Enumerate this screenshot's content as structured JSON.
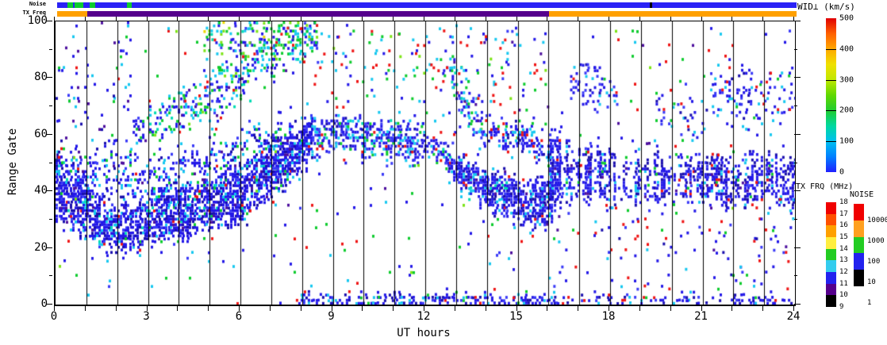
{
  "top_strips": {
    "noise_label": "Noise",
    "txfreq_label": "TX Freq",
    "noise_segments": [
      {
        "from": 0.1,
        "to": 24.1,
        "color": "#2a22f5"
      },
      {
        "from": 0.44,
        "to": 0.62,
        "color": "#0ecc2e"
      },
      {
        "from": 0.67,
        "to": 0.95,
        "color": "#0ecc2e"
      },
      {
        "from": 1.16,
        "to": 1.34,
        "color": "#0ecc2e"
      },
      {
        "from": 2.37,
        "to": 2.52,
        "color": "#0ecc2e"
      },
      {
        "from": 19.33,
        "to": 19.42,
        "color": "#000000"
      }
    ],
    "txfreq_segments": [
      {
        "from": 0.1,
        "to": 1.08,
        "color": "#ffa000"
      },
      {
        "from": 1.08,
        "to": 16.07,
        "color": "#55008c"
      },
      {
        "from": 16.07,
        "to": 24.1,
        "color": "#ffa000"
      }
    ]
  },
  "axes": {
    "x_label": "UT hours",
    "y_label": "Range Gate",
    "x_range": [
      0,
      24
    ],
    "x_tick_labels": [
      0,
      3,
      6,
      9,
      12,
      15,
      18,
      21,
      24
    ],
    "x_minor_tick_every_hours": 1,
    "y_range": [
      0,
      100
    ],
    "y_tick_labels": [
      0,
      20,
      40,
      60,
      80,
      100
    ],
    "y_minor_tick_every_gates": 10,
    "vertical_gridline_every_hours": 1
  },
  "colorbars": {
    "wid": {
      "title": "WID⊥ (km/s)",
      "min": 0,
      "max": 500,
      "tick_labels": [
        500,
        400,
        300,
        200,
        100,
        0
      ],
      "gradient_bottom_to_top": [
        "#2020ff",
        "#0080ff",
        "#00c0f0",
        "#00d8a0",
        "#20cc30",
        "#60d800",
        "#c0e800",
        "#f0e000",
        "#ffa800",
        "#ff6000",
        "#e00000"
      ]
    },
    "txfrq": {
      "title": "TX FRQ (MHz)",
      "tick_labels": [
        18,
        17,
        16,
        15,
        14,
        13,
        12,
        11,
        10,
        9
      ],
      "segments_top_to_bottom": [
        "#f00000",
        "#ff5000",
        "#ffa000",
        "#ffee40",
        "#22cc22",
        "#33ccee",
        "#2222ee",
        "#55008c",
        "#000000"
      ]
    },
    "noise": {
      "title": "NOISE",
      "tick_labels": [
        "10000",
        "1000",
        "100",
        "10",
        "1"
      ],
      "segments_top_to_bottom": [
        "#f00000",
        "#ffa020",
        "#22cc22",
        "#2222ee",
        "#000000"
      ]
    }
  },
  "chart_data": {
    "type": "heatmap",
    "title": "",
    "xlabel": "UT hours",
    "ylabel": "Range Gate",
    "xlim": [
      0,
      24
    ],
    "ylim": [
      0,
      100
    ],
    "value_label": "WID⊥ (km/s)",
    "value_range": [
      0,
      500
    ],
    "grid": "vertical lines every 1 hour",
    "palette": {
      "blue": "#2318e8",
      "blue2": "#3a3af8",
      "navy": "#1a0fae",
      "indigo": "#4d0f9e",
      "cyan": "#16c8f0",
      "teal": "#00dcb4",
      "green": "#0ecc2e",
      "lime": "#7ce414",
      "yellow": "#ecd800",
      "orange": "#ff9000",
      "red": "#ef1414",
      "black": "#101010"
    },
    "features": [
      {
        "name": "morning-band",
        "t0": 0,
        "t1": 8.3,
        "density": 0.8,
        "path": [
          [
            0,
            41,
            11
          ],
          [
            0.9,
            35,
            10
          ],
          [
            1.7,
            26,
            7
          ],
          [
            2.6,
            28,
            8
          ],
          [
            3.6,
            31,
            8
          ],
          [
            4.6,
            33,
            8
          ],
          [
            5.6,
            37,
            9
          ],
          [
            6.6,
            44,
            9
          ],
          [
            7.6,
            52,
            8
          ],
          [
            8.3,
            58,
            7
          ]
        ],
        "colors": {
          "blue": 0.58,
          "navy": 0.16,
          "blue2": 0.1,
          "cyan": 0.07,
          "indigo": 0.04,
          "teal": 0.02,
          "green": 0.015,
          "red": 0.015
        }
      },
      {
        "name": "morning-band-fringe",
        "t0": 0,
        "t1": 8.3,
        "density": 0.3,
        "path": [
          [
            0,
            52,
            5
          ],
          [
            1.5,
            46,
            7
          ],
          [
            3,
            44,
            8
          ],
          [
            4.5,
            46,
            8
          ],
          [
            6,
            52,
            8
          ],
          [
            7.5,
            59,
            7
          ],
          [
            8.3,
            64,
            5
          ]
        ],
        "colors": {
          "blue": 0.45,
          "cyan": 0.2,
          "blue2": 0.15,
          "navy": 0.08,
          "green": 0.06,
          "indigo": 0.03,
          "red": 0.03
        }
      },
      {
        "name": "midday-band",
        "t0": 8.3,
        "t1": 12.75,
        "density": 0.55,
        "path": [
          [
            8.3,
            59,
            7
          ],
          [
            9,
            61,
            6
          ],
          [
            10,
            59,
            6
          ],
          [
            11,
            57,
            6
          ],
          [
            12,
            56,
            5
          ],
          [
            12.75,
            53,
            5
          ]
        ],
        "colors": {
          "blue": 0.5,
          "cyan": 0.15,
          "blue2": 0.12,
          "navy": 0.08,
          "green": 0.08,
          "teal": 0.04,
          "red": 0.03
        }
      },
      {
        "name": "afternoon-descent",
        "t0": 12.75,
        "t1": 16.1,
        "density": 0.8,
        "path": [
          [
            12.75,
            49,
            4
          ],
          [
            13.3,
            45,
            6
          ],
          [
            14.1,
            40,
            7
          ],
          [
            15.1,
            36,
            7
          ],
          [
            16.1,
            36,
            8
          ]
        ],
        "colors": {
          "blue": 0.55,
          "navy": 0.17,
          "blue2": 0.1,
          "cyan": 0.1,
          "indigo": 0.03,
          "teal": 0.02,
          "red": 0.03
        }
      },
      {
        "name": "evening-start-block",
        "t0": 16.02,
        "t1": 16.4,
        "density": 0.85,
        "path": [
          [
            16.02,
            47,
            14
          ],
          [
            16.4,
            47,
            13
          ]
        ],
        "colors": {
          "blue": 0.6,
          "navy": 0.18,
          "blue2": 0.1,
          "cyan": 0.06,
          "indigo": 0.03,
          "red": 0.03
        }
      },
      {
        "name": "evening-band",
        "t0": 16.4,
        "t1": 24,
        "density": 0.62,
        "streaky": true,
        "path": [
          [
            16.4,
            47,
            9
          ],
          [
            18,
            45,
            8
          ],
          [
            20,
            44,
            8
          ],
          [
            22,
            44,
            8
          ],
          [
            24,
            43,
            8
          ]
        ],
        "colors": {
          "blue": 0.55,
          "navy": 0.2,
          "blue2": 0.1,
          "cyan": 0.06,
          "red": 0.04,
          "indigo": 0.03,
          "green": 0.02
        }
      },
      {
        "name": "dawn-diagonal",
        "t0": 2.5,
        "t1": 8.5,
        "density": 0.3,
        "path": [
          [
            2.5,
            62,
            5
          ],
          [
            4,
            68,
            7
          ],
          [
            5,
            74,
            8
          ],
          [
            6,
            82,
            9
          ],
          [
            7,
            90,
            9
          ],
          [
            8.5,
            96,
            5
          ]
        ],
        "colors": {
          "blue": 0.3,
          "cyan": 0.22,
          "green": 0.2,
          "blue2": 0.1,
          "teal": 0.08,
          "lime": 0.04,
          "red": 0.03,
          "indigo": 0.03
        }
      },
      {
        "name": "dawn-top-patch",
        "t0": 4.8,
        "t1": 8.5,
        "density": 0.3,
        "path": [
          [
            4.8,
            94,
            6
          ],
          [
            6.5,
            95,
            6
          ],
          [
            8.5,
            96,
            4
          ]
        ],
        "colors": {
          "green": 0.3,
          "cyan": 0.25,
          "blue": 0.2,
          "lime": 0.1,
          "teal": 0.05,
          "red": 0.04,
          "yellow": 0.03,
          "blue2": 0.03
        }
      },
      {
        "name": "midnight-upper-scatter",
        "t0": 0,
        "t1": 2.5,
        "density": 0.05,
        "path": [
          [
            0,
            75,
            25
          ],
          [
            2.5,
            70,
            20
          ]
        ],
        "colors": {
          "blue": 0.4,
          "indigo": 0.2,
          "cyan": 0.15,
          "navy": 0.1,
          "blue2": 0.1,
          "green": 0.05
        }
      },
      {
        "name": "day-upper-scatter",
        "t0": 8.3,
        "t1": 16,
        "density": 0.045,
        "soft": false,
        "path": [
          [
            8.3,
            76,
            21
          ],
          [
            16,
            76,
            21
          ]
        ],
        "colors": {
          "red": 0.28,
          "blue": 0.22,
          "cyan": 0.18,
          "green": 0.15,
          "blue2": 0.07,
          "lime": 0.05,
          "indigo": 0.05
        }
      },
      {
        "name": "pm-upper-descent",
        "t0": 12.6,
        "t1": 13.8,
        "density": 0.3,
        "path": [
          [
            12.6,
            86,
            5
          ],
          [
            13.2,
            74,
            8
          ],
          [
            13.8,
            64,
            6
          ]
        ],
        "colors": {
          "blue": 0.3,
          "cyan": 0.25,
          "green": 0.2,
          "blue2": 0.1,
          "teal": 0.08,
          "red": 0.04,
          "indigo": 0.03
        }
      },
      {
        "name": "pm-shelf",
        "t0": 13.8,
        "t1": 15.5,
        "density": 0.5,
        "path": [
          [
            13.8,
            62,
            4
          ],
          [
            15.5,
            58,
            4
          ]
        ],
        "colors": {
          "blue": 0.5,
          "cyan": 0.2,
          "blue2": 0.12,
          "navy": 0.08,
          "green": 0.05,
          "red": 0.05
        }
      },
      {
        "name": "pm-shelf-tail",
        "t0": 15.5,
        "t1": 16.1,
        "density": 0.35,
        "path": [
          [
            15.5,
            56,
            4
          ],
          [
            16.1,
            51,
            5
          ]
        ],
        "colors": {
          "blue": 0.5,
          "cyan": 0.2,
          "blue2": 0.12,
          "navy": 0.08,
          "green": 0.05,
          "red": 0.05
        }
      },
      {
        "name": "evening-patch-1",
        "t0": 16.7,
        "t1": 18.3,
        "density": 0.18,
        "path": [
          [
            16.7,
            78,
            7
          ],
          [
            18.3,
            76,
            7
          ]
        ],
        "colors": {
          "blue": 0.45,
          "blue2": 0.15,
          "cyan": 0.12,
          "red": 0.12,
          "navy": 0.08,
          "green": 0.08
        }
      },
      {
        "name": "evening-patch-2",
        "t0": 19.4,
        "t1": 21.1,
        "density": 0.14,
        "path": [
          [
            19.4,
            68,
            6
          ],
          [
            21.1,
            66,
            6
          ]
        ],
        "colors": {
          "blue": 0.45,
          "blue2": 0.15,
          "cyan": 0.12,
          "red": 0.12,
          "navy": 0.08,
          "green": 0.08
        }
      },
      {
        "name": "evening-patch-3",
        "t0": 21.3,
        "t1": 23.9,
        "density": 0.16,
        "path": [
          [
            21.3,
            73,
            9
          ],
          [
            23.9,
            74,
            9
          ]
        ],
        "colors": {
          "blue": 0.45,
          "blue2": 0.15,
          "cyan": 0.12,
          "red": 0.12,
          "navy": 0.08,
          "green": 0.08
        }
      },
      {
        "name": "bottom-strip-day",
        "t0": 7.8,
        "t1": 16.2,
        "density": 0.5,
        "path": [
          [
            7.8,
            1,
            2
          ],
          [
            16.2,
            1,
            2
          ]
        ],
        "colors": {
          "blue": 0.55,
          "navy": 0.15,
          "cyan": 0.12,
          "blue2": 0.1,
          "red": 0.05,
          "green": 0.03
        }
      },
      {
        "name": "bottom-strip-evening",
        "t0": 16.2,
        "t1": 24,
        "density": 0.3,
        "path": [
          [
            16.2,
            1,
            1.5
          ],
          [
            24,
            0.5,
            1.5
          ]
        ],
        "colors": {
          "blue": 0.55,
          "navy": 0.15,
          "cyan": 0.12,
          "blue2": 0.1,
          "red": 0.05,
          "green": 0.03
        }
      },
      {
        "name": "evening-low-scatter",
        "t0": 16,
        "t1": 24,
        "density": 0.022,
        "soft": false,
        "path": [
          [
            16,
            18,
            17
          ],
          [
            24,
            18,
            17
          ]
        ],
        "colors": {
          "blue": 0.4,
          "red": 0.25,
          "cyan": 0.12,
          "blue2": 0.1,
          "navy": 0.05,
          "indigo": 0.05,
          "green": 0.03
        }
      },
      {
        "name": "global-noise",
        "t0": 0,
        "t1": 24,
        "density": 0.012,
        "soft": false,
        "path": [
          [
            0,
            50,
            50
          ],
          [
            24,
            50,
            50
          ]
        ],
        "colors": {
          "blue": 0.3,
          "cyan": 0.2,
          "green": 0.18,
          "red": 0.17,
          "blue2": 0.07,
          "indigo": 0.04,
          "lime": 0.04
        }
      }
    ]
  }
}
